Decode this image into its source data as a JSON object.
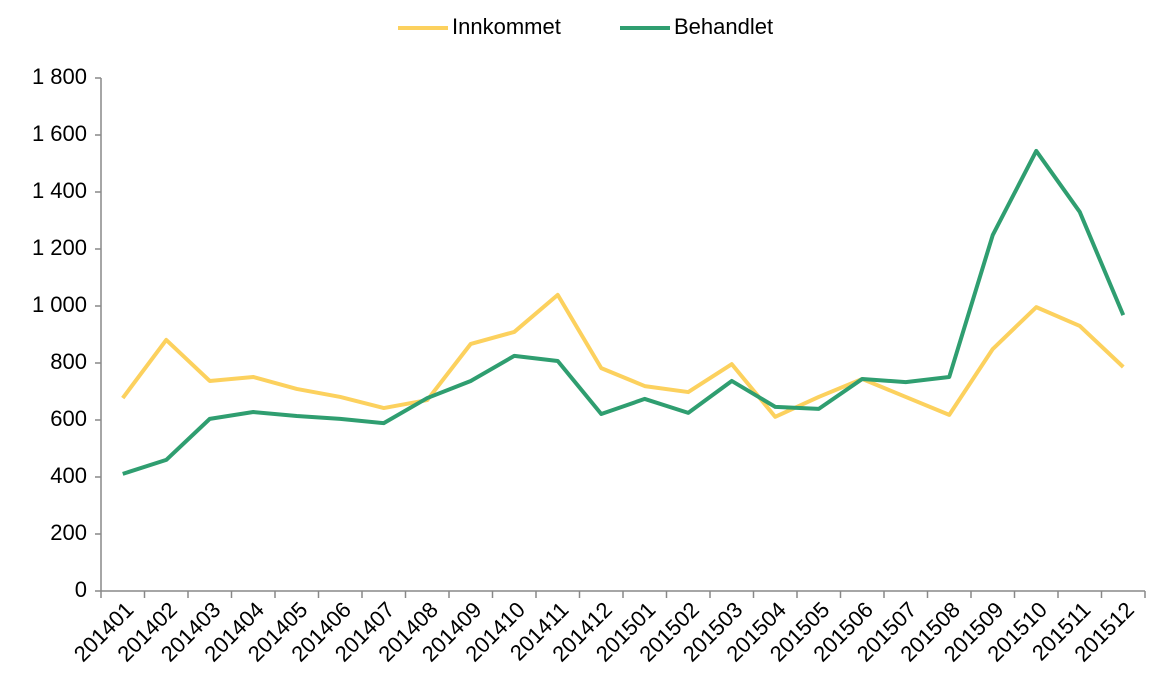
{
  "chart_data": {
    "type": "line",
    "categories": [
      "201401",
      "201402",
      "201403",
      "201404",
      "201405",
      "201406",
      "201407",
      "201408",
      "201409",
      "201410",
      "201411",
      "201412",
      "201501",
      "201502",
      "201503",
      "201504",
      "201505",
      "201506",
      "201507",
      "201508",
      "201509",
      "201510",
      "201511",
      "201512"
    ],
    "series": [
      {
        "name": "Innkommet",
        "color": "#fcd15e",
        "values": [
          677,
          881,
          737,
          751,
          709,
          681,
          642,
          670,
          867,
          909,
          1039,
          782,
          719,
          698,
          796,
          611,
          681,
          744,
          681,
          618,
          849,
          996,
          930,
          786
        ]
      },
      {
        "name": "Behandlet",
        "color": "#2f9e70",
        "values": [
          411,
          460,
          604,
          628,
          614,
          604,
          589,
          677,
          737,
          825,
          807,
          621,
          674,
          625,
          737,
          646,
          639,
          744,
          733,
          751,
          1249,
          1544,
          1330,
          968
        ]
      }
    ],
    "ylim": [
      0,
      1800
    ],
    "yticks": [
      0,
      200,
      400,
      600,
      800,
      {
        "value": 1000,
        "label": "1 000"
      },
      {
        "value": 1200,
        "label": "1 200"
      },
      {
        "value": 1400,
        "label": "1 400"
      },
      {
        "value": 1600,
        "label": "1 600"
      },
      {
        "value": 1800,
        "label": "1 800"
      }
    ],
    "legend": "top"
  }
}
